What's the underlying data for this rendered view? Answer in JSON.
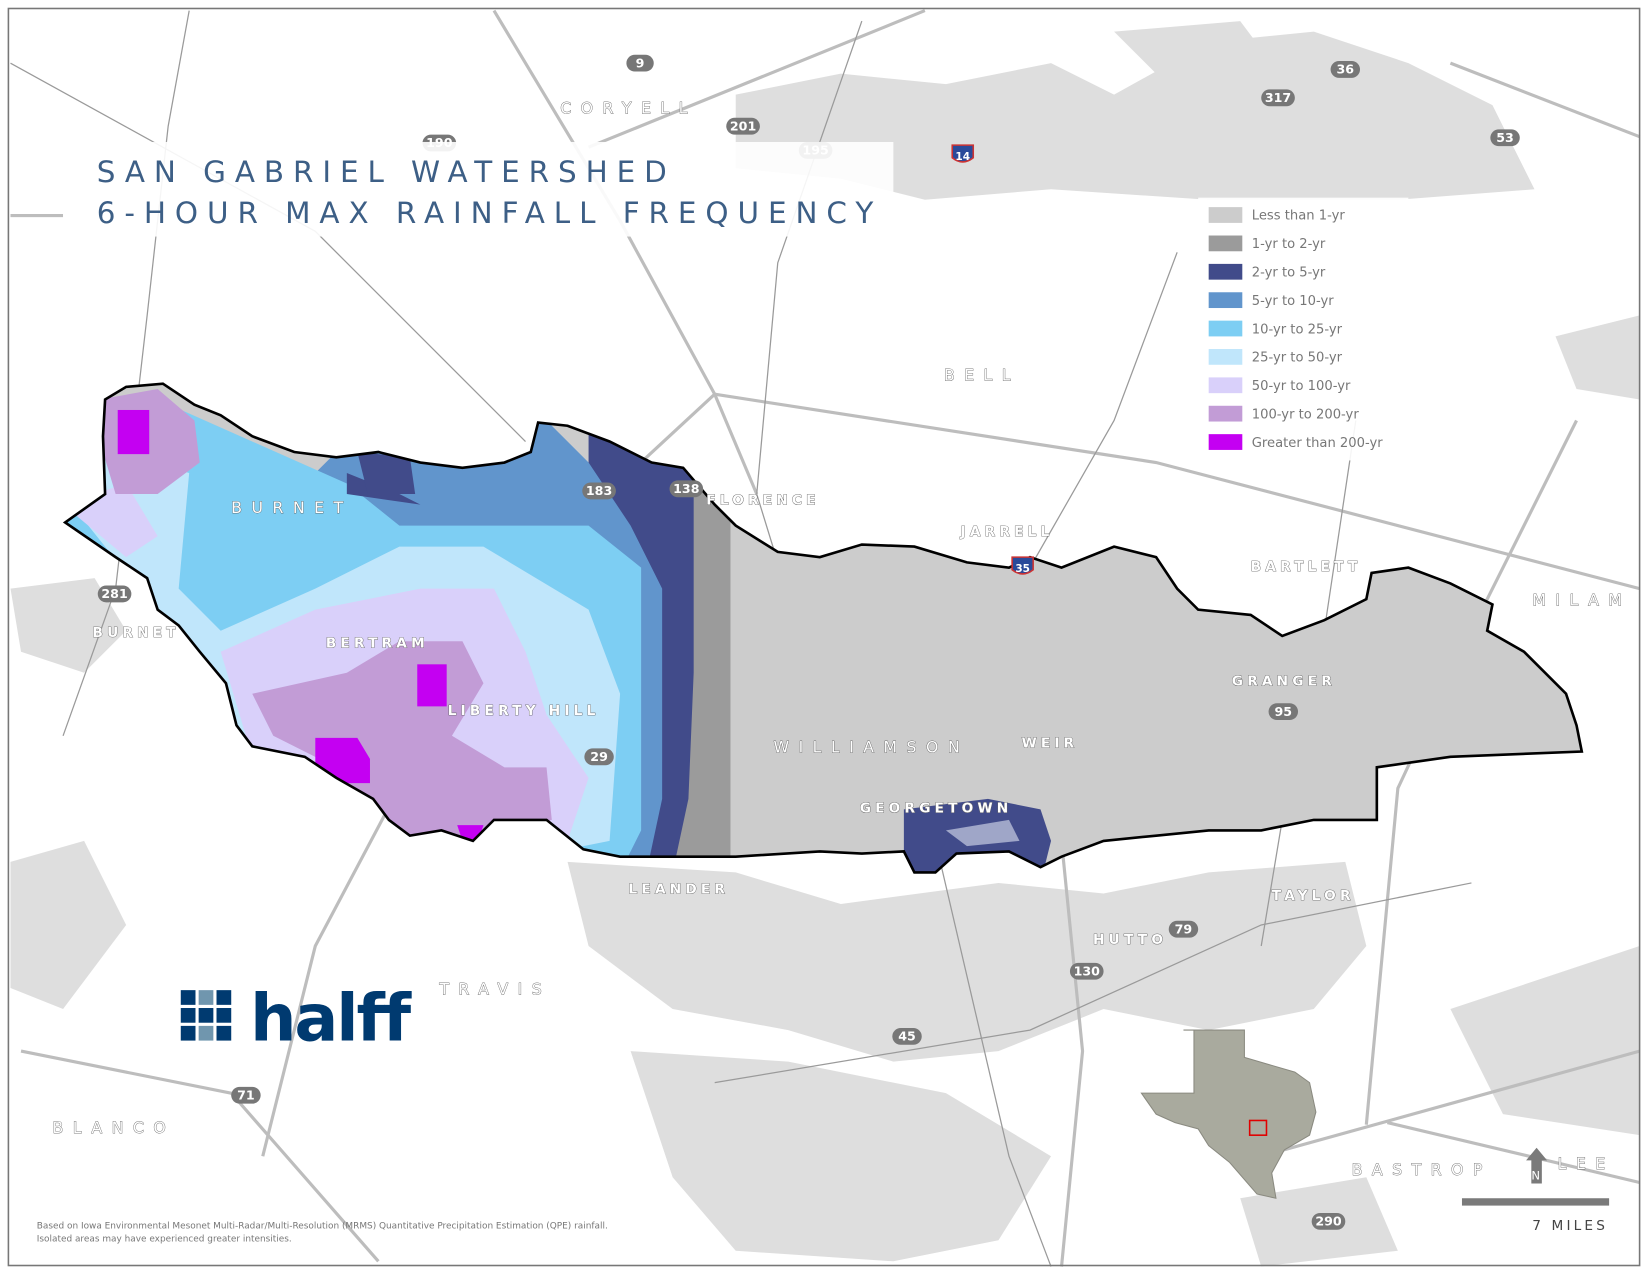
{
  "title": {
    "line1": "SAN GABRIEL WATERSHED",
    "line2": "6-HOUR MAX RAINFALL FREQUENCY",
    "color": "#3d5f86"
  },
  "legend": [
    {
      "label": "Less than 1-yr",
      "color": "#cccccc"
    },
    {
      "label": "1-yr to 2-yr",
      "color": "#9b9b9b"
    },
    {
      "label": "2-yr to 5-yr",
      "color": "#414b8a"
    },
    {
      "label": "5-yr to 10-yr",
      "color": "#6195cc"
    },
    {
      "label": "10-yr to 25-yr",
      "color": "#7dcef3"
    },
    {
      "label": "25-yr to 50-yr",
      "color": "#c0e6fb"
    },
    {
      "label": "50-yr to 100-yr",
      "color": "#d9d0fa"
    },
    {
      "label": "100-yr to 200-yr",
      "color": "#c29cd6"
    },
    {
      "label": "Greater than 200-yr",
      "color": "#c400f2"
    }
  ],
  "counties": [
    "CORYELL",
    "BELL",
    "BURNET",
    "MILAM",
    "WILLIAMSON",
    "TRAVIS",
    "BLANCO",
    "BASTROP",
    "LEE"
  ],
  "cities": [
    "FLORENCE",
    "JARRELL",
    "BARTLETT",
    "BURNET",
    "BERTRAM",
    "LIBERTY HILL",
    "GRANGER",
    "WEIR",
    "GEORGETOWN",
    "LEANDER",
    "TAYLOR",
    "HUTTO"
  ],
  "highways": [
    "9",
    "190",
    "201",
    "195",
    "14",
    "36",
    "317",
    "53",
    "183",
    "138",
    "35",
    "281",
    "29",
    "95",
    "79",
    "130",
    "45",
    "71",
    "290"
  ],
  "logo": {
    "text": "halff",
    "color": "#003a70"
  },
  "footnote": {
    "line1": "Based on Iowa Environmental Mesonet Multi-Radar/Multi-Resolution (MRMS) Quantitative Precipitation Estimation (QPE) rainfall.",
    "line2": "Isolated areas may have experienced greater intensities."
  },
  "scale_bar": {
    "label": "7 MILES"
  },
  "north_arrow": {
    "label": "N"
  },
  "inset": {
    "highlight_color": "#e00000"
  }
}
